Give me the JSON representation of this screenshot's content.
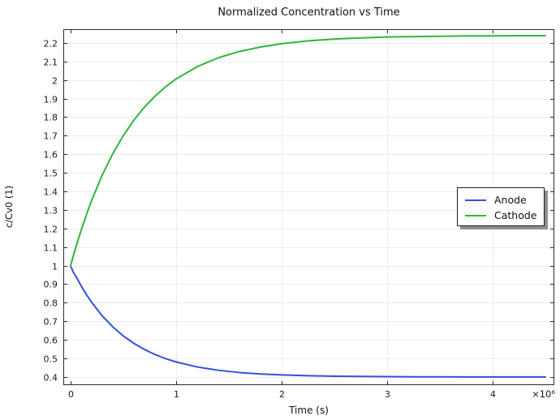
{
  "chart": {
    "title": "Normalized Concentration vs Time",
    "xlabel": "Time (s)",
    "ylabel": "c/Cv0 (1)",
    "x_exponent_label": "×10⁶"
  },
  "colors": {
    "axis": "#2b2b2b",
    "grid": "#ececec",
    "tick_text": "#1a1a1a",
    "background": "#ffffff",
    "anode_line": "#3352d6",
    "cathode_line": "#2db83d"
  },
  "chart_data": {
    "type": "line",
    "title": "Normalized Concentration vs Time",
    "xlabel": "Time (s)",
    "ylabel": "c/Cv0 (1)",
    "x_exponent": "×10⁶",
    "grid": true,
    "legend_position": "right-middle",
    "xlim": [
      -69000,
      4585000
    ],
    "ylim": [
      0.356,
      2.274
    ],
    "x_ticks": {
      "values": [
        0,
        1000000,
        2000000,
        3000000,
        4000000
      ],
      "labels": [
        "0",
        "1",
        "2",
        "3",
        "4"
      ]
    },
    "y_ticks": {
      "values": [
        0.4,
        0.5,
        0.6,
        0.7,
        0.8,
        0.9,
        1.0,
        1.1,
        1.2,
        1.3,
        1.4,
        1.5,
        1.6,
        1.7,
        1.8,
        1.9,
        2.0,
        2.1,
        2.2
      ],
      "labels": [
        "0.4",
        "0.5",
        "0.6",
        "0.7",
        "0.8",
        "0.9",
        "1",
        "1.1",
        "1.2",
        "1.3",
        "1.4",
        "1.5",
        "1.6",
        "1.7",
        "1.8",
        "1.9",
        "2",
        "2.1",
        "2.2"
      ]
    },
    "x": [
      0,
      25000,
      50000,
      100000,
      150000,
      200000,
      300000,
      400000,
      500000,
      600000,
      700000,
      800000,
      900000,
      1000000,
      1200000,
      1400000,
      1600000,
      1800000,
      2000000,
      2250000,
      2500000,
      2750000,
      3000000,
      3250000,
      3500000,
      3750000,
      4000000,
      4250000,
      4500000
    ],
    "series": [
      {
        "name": "Anode",
        "color": "#3352d6",
        "values": [
          1.0,
          0.965,
          0.943,
          0.891,
          0.844,
          0.802,
          0.729,
          0.67,
          0.621,
          0.581,
          0.548,
          0.521,
          0.499,
          0.481,
          0.454,
          0.436,
          0.424,
          0.416,
          0.411,
          0.407,
          0.404,
          0.403,
          0.402,
          0.401,
          0.401,
          0.4,
          0.4,
          0.4,
          0.4
        ]
      },
      {
        "name": "Cathode",
        "color": "#2db83d",
        "values": [
          1.0,
          1.051,
          1.099,
          1.19,
          1.274,
          1.352,
          1.488,
          1.603,
          1.701,
          1.784,
          1.854,
          1.913,
          1.963,
          2.006,
          2.072,
          2.12,
          2.154,
          2.178,
          2.196,
          2.211,
          2.221,
          2.227,
          2.232,
          2.234,
          2.236,
          2.238,
          2.238,
          2.239,
          2.239
        ]
      }
    ]
  }
}
